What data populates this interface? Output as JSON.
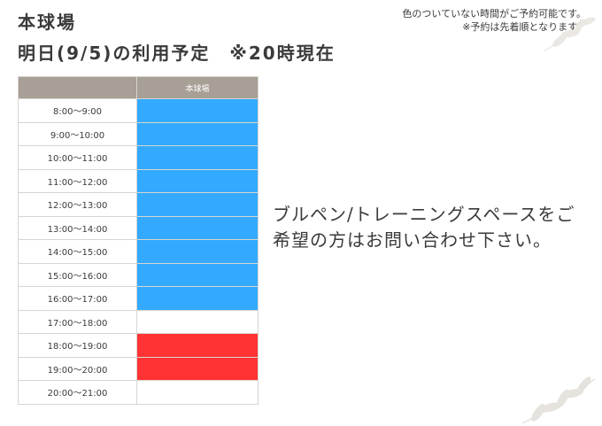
{
  "header": {
    "title_line1": "本球場",
    "title_line2": "明日(9/5)の利用予定　※20時現在"
  },
  "notice": {
    "line1": "色のついていない時間がご予約可能です。",
    "line2": "※予約は先着順となります。"
  },
  "schedule": {
    "column_header": "本球場",
    "colors": {
      "booked": "#33aaff",
      "event": "#ff3333",
      "available": "#ffffff"
    },
    "rows": [
      {
        "time": "8:00～9:00",
        "status": "booked"
      },
      {
        "time": "9:00～10:00",
        "status": "booked"
      },
      {
        "time": "10:00～11:00",
        "status": "booked"
      },
      {
        "time": "11:00～12:00",
        "status": "booked"
      },
      {
        "time": "12:00～13:00",
        "status": "booked"
      },
      {
        "time": "13:00～14:00",
        "status": "booked"
      },
      {
        "time": "14:00～15:00",
        "status": "booked"
      },
      {
        "time": "15:00～16:00",
        "status": "booked"
      },
      {
        "time": "16:00～17:00",
        "status": "booked"
      },
      {
        "time": "17:00～18:00",
        "status": "available"
      },
      {
        "time": "18:00～19:00",
        "status": "event"
      },
      {
        "time": "19:00～20:00",
        "status": "event"
      },
      {
        "time": "20:00～21:00",
        "status": "available"
      }
    ]
  },
  "message": {
    "text": "ブルペン/トレーニングスペースをご希望の方はお問い合わせ下さい。"
  },
  "decor": {
    "icon": "leaf-icon",
    "color": "#e6e2dd"
  }
}
